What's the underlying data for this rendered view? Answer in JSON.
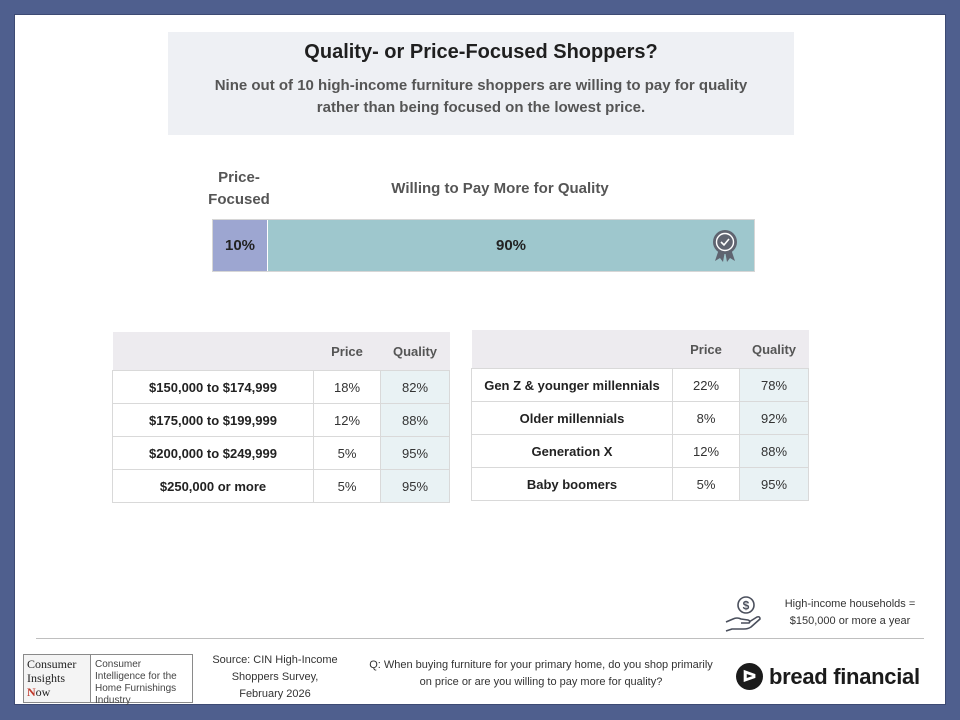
{
  "header": {
    "title": "Quality- or Price-Focused Shoppers?",
    "subtitle": "Nine out of 10 high-income furniture shoppers are willing to pay for quality rather than being focused on the lowest price."
  },
  "bar": {
    "price_label": "Price-Focused",
    "quality_label": "Willing to Pay More for Quality",
    "price_value_text": "10%",
    "quality_value_text": "90%",
    "price_share": 10,
    "quality_share": 90,
    "price_color": "#9da6d1",
    "quality_color": "#9ec7cd",
    "icon": "award-medal-icon"
  },
  "income_table": {
    "headers": [
      "",
      "Price",
      "Quality"
    ],
    "rows": [
      {
        "label": "$150,000 to $174,999",
        "price": "18%",
        "quality": "82%"
      },
      {
        "label": "$175,000 to $199,999",
        "price": "12%",
        "quality": "88%"
      },
      {
        "label": "$200,000 to $249,999",
        "price": "5%",
        "quality": "95%"
      },
      {
        "label": "$250,000 or more",
        "price": "5%",
        "quality": "95%"
      }
    ]
  },
  "generation_table": {
    "headers": [
      "",
      "Price",
      "Quality"
    ],
    "rows": [
      {
        "label": "Gen Z & younger millennials",
        "price": "22%",
        "quality": "78%"
      },
      {
        "label": "Older millennials",
        "price": "8%",
        "quality": "92%"
      },
      {
        "label": "Generation X",
        "price": "12%",
        "quality": "88%"
      },
      {
        "label": "Baby boomers",
        "price": "5%",
        "quality": "95%"
      }
    ]
  },
  "note": {
    "icon": "hand-money-icon",
    "line1": "High-income households =",
    "line2": "$150,000 or more a year"
  },
  "footer": {
    "cin_logo_line1": "Consumer",
    "cin_logo_line2": "Insights",
    "cin_logo_line3_initial": "N",
    "cin_logo_line3_rest": "ow",
    "cin_tagline": "Consumer Intelligence for the Home Furnishings Industry",
    "source": "Source: CIN High-Income Shoppers Survey, February 2026",
    "question": "Q: When buying furniture for your primary home, do you shop primarily on price or are you willing to pay more for quality?",
    "brand_text": "bread financial"
  }
}
